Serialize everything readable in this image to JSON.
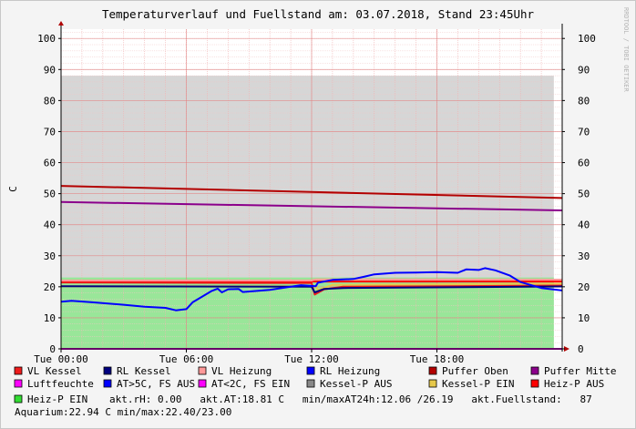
{
  "chart_data": {
    "type": "area",
    "title": "Temperaturverlauf und Fuellstand am: 03.07.2018, Stand 23:45Uhr",
    "ylabel": "C",
    "watermark": "RRDTOOL / TOBI OETIKER",
    "ylim": [
      0,
      103
    ],
    "y_ticks": [
      0,
      10,
      20,
      30,
      40,
      50,
      60,
      70,
      80,
      90,
      100
    ],
    "x_domain_hours": [
      0,
      24
    ],
    "x_ticks": [
      {
        "hour": 0,
        "label": "Tue 00:00"
      },
      {
        "hour": 6,
        "label": "Tue 06:00"
      },
      {
        "hour": 12,
        "label": "Tue 12:00"
      },
      {
        "hour": 18,
        "label": "Tue 18:00"
      }
    ],
    "series": [
      {
        "name": "Fuellstand",
        "kind": "area",
        "color": "#d6d6d6",
        "points": [
          [
            0,
            88
          ],
          [
            23.6,
            88
          ]
        ]
      },
      {
        "name": "Heiz-P EIN",
        "kind": "area",
        "color": "#99e699",
        "points": [
          [
            0,
            23
          ],
          [
            23.6,
            23
          ]
        ]
      },
      {
        "name": "Kessel-P EIN",
        "kind": "line",
        "color": "#e6c84a",
        "points": [
          [
            0,
            20.2
          ],
          [
            12.2,
            20.2
          ],
          [
            12.3,
            19.0
          ],
          [
            13,
            20.6
          ],
          [
            24,
            21.0
          ]
        ]
      },
      {
        "name": "Heiz-P AUS",
        "kind": "line",
        "color": "#ff0000",
        "points": [
          [
            0,
            21.7
          ],
          [
            24,
            21.7
          ]
        ]
      },
      {
        "name": "VL Kessel",
        "kind": "line",
        "color": "#ee1c1c",
        "points": [
          [
            0,
            21.4
          ],
          [
            12.0,
            21.2
          ],
          [
            12.15,
            17.5
          ],
          [
            12.6,
            19.2
          ],
          [
            13.5,
            20.0
          ],
          [
            24,
            20.4
          ]
        ]
      },
      {
        "name": "RL Kessel",
        "kind": "line",
        "color": "#00007f",
        "points": [
          [
            0,
            20.2
          ],
          [
            12.0,
            20.0
          ],
          [
            12.15,
            18.2
          ],
          [
            12.6,
            19.3
          ],
          [
            13.5,
            19.6
          ],
          [
            24,
            20.1
          ]
        ]
      },
      {
        "name": "VL Heizung",
        "kind": "line",
        "color": "#ff9999",
        "points": [
          [
            0,
            22.0
          ],
          [
            12.0,
            22.0
          ],
          [
            12.2,
            22.4
          ],
          [
            24,
            22.3
          ]
        ]
      },
      {
        "name": "Puffer Oben",
        "kind": "line",
        "color": "#b30000",
        "points": [
          [
            0,
            52.5
          ],
          [
            24,
            48.6
          ]
        ]
      },
      {
        "name": "Puffer Mitte",
        "kind": "line",
        "color": "#8b008b",
        "points": [
          [
            0,
            47.3
          ],
          [
            24,
            44.6
          ]
        ]
      },
      {
        "name": "RL Heizung",
        "kind": "line",
        "color": "#0000ff",
        "points": [
          [
            0,
            15.2
          ],
          [
            0.5,
            15.5
          ],
          [
            1.5,
            15.0
          ],
          [
            3.0,
            14.2
          ],
          [
            4.0,
            13.6
          ],
          [
            5.0,
            13.2
          ],
          [
            5.5,
            12.4
          ],
          [
            6.0,
            12.8
          ],
          [
            6.3,
            15.0
          ],
          [
            6.8,
            17.0
          ],
          [
            7.2,
            18.6
          ],
          [
            7.5,
            19.4
          ],
          [
            7.7,
            18.2
          ],
          [
            8.0,
            19.2
          ],
          [
            8.5,
            19.3
          ],
          [
            8.7,
            18.3
          ],
          [
            10.0,
            19.0
          ],
          [
            11.0,
            20.0
          ],
          [
            11.5,
            20.5
          ],
          [
            12.2,
            20.2
          ],
          [
            12.3,
            21.3
          ],
          [
            13.0,
            22.2
          ],
          [
            14.0,
            22.5
          ],
          [
            14.5,
            23.2
          ],
          [
            15.0,
            24.0
          ],
          [
            16.0,
            24.5
          ],
          [
            17.0,
            24.6
          ],
          [
            18.0,
            24.7
          ],
          [
            19.0,
            24.5
          ],
          [
            19.4,
            25.6
          ],
          [
            20.0,
            25.4
          ],
          [
            20.3,
            26.0
          ],
          [
            20.8,
            25.3
          ],
          [
            21.5,
            23.6
          ],
          [
            22.0,
            21.5
          ],
          [
            23.0,
            19.6
          ],
          [
            24,
            18.8
          ]
        ]
      },
      {
        "name": "AT>5C, FS AUS",
        "kind": "legend-only",
        "color": "#0000ff"
      },
      {
        "name": "AT<2C, FS EIN",
        "kind": "legend-only",
        "color": "#ff00ff"
      },
      {
        "name": "Kessel-P AUS",
        "kind": "legend-only",
        "color": "#888888"
      },
      {
        "name": "Luftfeuchte",
        "kind": "legend-only",
        "color": "#ff00ff"
      }
    ],
    "legend_rows": [
      [
        {
          "name": "VL Kessel",
          "color": "#ee1c1c"
        },
        {
          "name": "RL Kessel",
          "color": "#00007f"
        },
        {
          "name": "VL Heizung",
          "color": "#ff9999"
        },
        {
          "name": "RL Heizung",
          "color": "#0000ff"
        },
        {
          "name": "Puffer Oben",
          "color": "#b30000"
        },
        {
          "name": "Puffer Mitte",
          "color": "#8b008b"
        }
      ],
      [
        {
          "name": "Luftfeuchte",
          "color": "#ff00ff"
        },
        {
          "name": "AT>5C, FS AUS",
          "color": "#0000ff"
        },
        {
          "name": "AT<2C, FS EIN",
          "color": "#ff00ff"
        },
        {
          "name": "Kessel-P AUS",
          "color": "#888888"
        },
        {
          "name": "Kessel-P EIN",
          "color": "#e6c84a"
        },
        {
          "name": "Heiz-P AUS",
          "color": "#ff0000"
        }
      ]
    ],
    "legend_line3": {
      "swatch": {
        "name": "Heiz-P EIN",
        "color": "#33dd33"
      },
      "text": "akt.rH: 0.00   akt.AT:18.81 C   min/maxAT24h:12.06 /26.19   akt.Fuellstand:   87"
    },
    "footer_line": "Aquarium:22.94 C  min/max:22.40/23.00"
  }
}
